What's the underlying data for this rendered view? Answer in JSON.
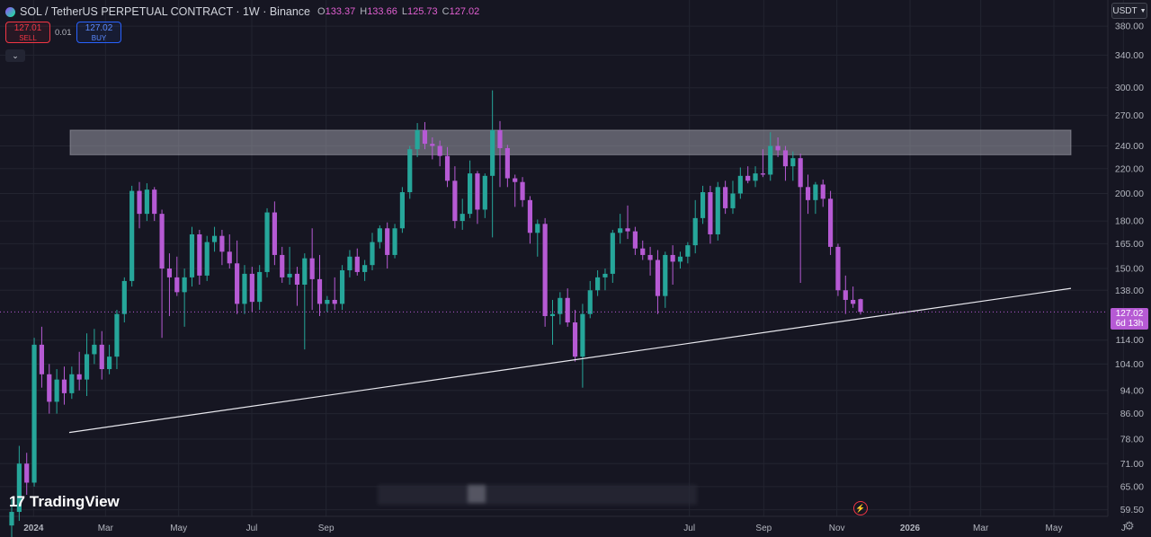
{
  "header": {
    "title": "SOL / TetherUS PERPETUAL CONTRACT · 1W · Binance",
    "open_label": "O",
    "open": "133.37",
    "high_label": "H",
    "high": "133.66",
    "low_label": "L",
    "low": "125.73",
    "close_label": "C",
    "close": "127.02"
  },
  "trade": {
    "sell_price": "127.01",
    "sell_label": "SELL",
    "spread": "0.01",
    "buy_price": "127.02",
    "buy_label": "BUY"
  },
  "currency": {
    "label": "USDT"
  },
  "brand": {
    "name": "TradingView",
    "logo": "17"
  },
  "last_price": {
    "value": "127.02",
    "countdown": "6d 13h"
  },
  "colors": {
    "up": "#26a69a",
    "down": "#b65ad4",
    "background": "#161622",
    "zone": "#9a9aa6"
  },
  "chart_data": {
    "type": "candlestick",
    "interval": "1W",
    "scale": "log",
    "ylim": [
      58,
      420
    ],
    "xlim": [
      "2023-12-04",
      "2026-06-15"
    ],
    "y_ticks": [
      "59.50",
      "65.00",
      "71.00",
      "78.00",
      "86.00",
      "94.00",
      "104.00",
      "114.00",
      "138.00",
      "150.00",
      "165.00",
      "180.00",
      "200.00",
      "220.00",
      "240.00",
      "270.00",
      "300.00",
      "340.00",
      "380.00"
    ],
    "x_ticks": [
      {
        "label": "2024",
        "date": "2024-01-01",
        "bold": true
      },
      {
        "label": "Mar",
        "date": "2024-03-01"
      },
      {
        "label": "May",
        "date": "2024-05-01"
      },
      {
        "label": "Jul",
        "date": "2024-07-01"
      },
      {
        "label": "Sep",
        "date": "2024-09-01"
      },
      {
        "label": "Jul",
        "date": "2025-07-01"
      },
      {
        "label": "Sep",
        "date": "2025-09-01"
      },
      {
        "label": "Nov",
        "date": "2025-11-01"
      },
      {
        "label": "2026",
        "date": "2026-01-01",
        "bold": true
      },
      {
        "label": "Mar",
        "date": "2026-03-01"
      },
      {
        "label": "May",
        "date": "2026-05-01"
      },
      {
        "label": "J",
        "date": "2026-06-28"
      }
    ],
    "resistance_zone": {
      "low": 232,
      "high": 255
    },
    "trendline": {
      "start": {
        "date": "2024-01-08",
        "price": 80
      },
      "end": {
        "date": "2026-05-20",
        "price": 139
      }
    },
    "candles": [
      {
        "o": 56,
        "h": 62,
        "l": 52,
        "c": 59
      },
      {
        "o": 59,
        "h": 76,
        "l": 57,
        "c": 71
      },
      {
        "o": 71,
        "h": 74,
        "l": 63,
        "c": 66
      },
      {
        "o": 66,
        "h": 115,
        "l": 65,
        "c": 112
      },
      {
        "o": 112,
        "h": 120,
        "l": 95,
        "c": 100
      },
      {
        "o": 100,
        "h": 104,
        "l": 86,
        "c": 90
      },
      {
        "o": 90,
        "h": 102,
        "l": 86,
        "c": 98
      },
      {
        "o": 98,
        "h": 103,
        "l": 89,
        "c": 93
      },
      {
        "o": 93,
        "h": 103,
        "l": 91,
        "c": 100
      },
      {
        "o": 100,
        "h": 109,
        "l": 94,
        "c": 98
      },
      {
        "o": 98,
        "h": 117,
        "l": 92,
        "c": 108
      },
      {
        "o": 108,
        "h": 119,
        "l": 104,
        "c": 112
      },
      {
        "o": 112,
        "h": 118,
        "l": 98,
        "c": 102
      },
      {
        "o": 102,
        "h": 112,
        "l": 100,
        "c": 107
      },
      {
        "o": 107,
        "h": 128,
        "l": 102,
        "c": 126
      },
      {
        "o": 126,
        "h": 145,
        "l": 122,
        "c": 143
      },
      {
        "o": 143,
        "h": 206,
        "l": 140,
        "c": 202
      },
      {
        "o": 202,
        "h": 209,
        "l": 175,
        "c": 185
      },
      {
        "o": 185,
        "h": 208,
        "l": 180,
        "c": 203
      },
      {
        "o": 203,
        "h": 205,
        "l": 180,
        "c": 185
      },
      {
        "o": 185,
        "h": 188,
        "l": 115,
        "c": 150
      },
      {
        "o": 150,
        "h": 159,
        "l": 125,
        "c": 145
      },
      {
        "o": 145,
        "h": 157,
        "l": 135,
        "c": 137
      },
      {
        "o": 137,
        "h": 150,
        "l": 120,
        "c": 145
      },
      {
        "o": 145,
        "h": 176,
        "l": 140,
        "c": 171
      },
      {
        "o": 171,
        "h": 174,
        "l": 141,
        "c": 146
      },
      {
        "o": 146,
        "h": 170,
        "l": 143,
        "c": 166
      },
      {
        "o": 166,
        "h": 176,
        "l": 160,
        "c": 170
      },
      {
        "o": 170,
        "h": 174,
        "l": 152,
        "c": 160
      },
      {
        "o": 160,
        "h": 171,
        "l": 150,
        "c": 153
      },
      {
        "o": 153,
        "h": 167,
        "l": 126,
        "c": 131
      },
      {
        "o": 131,
        "h": 152,
        "l": 126,
        "c": 147
      },
      {
        "o": 147,
        "h": 151,
        "l": 127,
        "c": 132
      },
      {
        "o": 132,
        "h": 152,
        "l": 128,
        "c": 148
      },
      {
        "o": 148,
        "h": 189,
        "l": 145,
        "c": 186
      },
      {
        "o": 186,
        "h": 194,
        "l": 152,
        "c": 158
      },
      {
        "o": 158,
        "h": 163,
        "l": 142,
        "c": 145
      },
      {
        "o": 145,
        "h": 163,
        "l": 141,
        "c": 147
      },
      {
        "o": 147,
        "h": 151,
        "l": 130,
        "c": 141
      },
      {
        "o": 141,
        "h": 159,
        "l": 110,
        "c": 156
      },
      {
        "o": 156,
        "h": 175,
        "l": 128,
        "c": 144
      },
      {
        "o": 144,
        "h": 158,
        "l": 125,
        "c": 131
      },
      {
        "o": 131,
        "h": 135,
        "l": 127,
        "c": 133
      },
      {
        "o": 133,
        "h": 145,
        "l": 128,
        "c": 131
      },
      {
        "o": 131,
        "h": 152,
        "l": 128,
        "c": 149
      },
      {
        "o": 149,
        "h": 161,
        "l": 145,
        "c": 157
      },
      {
        "o": 157,
        "h": 162,
        "l": 146,
        "c": 148
      },
      {
        "o": 148,
        "h": 155,
        "l": 143,
        "c": 152
      },
      {
        "o": 152,
        "h": 172,
        "l": 149,
        "c": 166
      },
      {
        "o": 166,
        "h": 177,
        "l": 162,
        "c": 175
      },
      {
        "o": 175,
        "h": 179,
        "l": 150,
        "c": 158
      },
      {
        "o": 158,
        "h": 178,
        "l": 156,
        "c": 175
      },
      {
        "o": 175,
        "h": 205,
        "l": 172,
        "c": 201
      },
      {
        "o": 201,
        "h": 240,
        "l": 196,
        "c": 237
      },
      {
        "o": 237,
        "h": 262,
        "l": 230,
        "c": 255
      },
      {
        "o": 255,
        "h": 263,
        "l": 237,
        "c": 242
      },
      {
        "o": 242,
        "h": 248,
        "l": 228,
        "c": 240
      },
      {
        "o": 240,
        "h": 245,
        "l": 222,
        "c": 231
      },
      {
        "o": 231,
        "h": 239,
        "l": 205,
        "c": 210
      },
      {
        "o": 210,
        "h": 222,
        "l": 175,
        "c": 180
      },
      {
        "o": 180,
        "h": 196,
        "l": 174,
        "c": 185
      },
      {
        "o": 185,
        "h": 227,
        "l": 182,
        "c": 216
      },
      {
        "o": 216,
        "h": 218,
        "l": 178,
        "c": 188
      },
      {
        "o": 188,
        "h": 216,
        "l": 182,
        "c": 214
      },
      {
        "o": 214,
        "h": 297,
        "l": 169,
        "c": 255
      },
      {
        "o": 255,
        "h": 264,
        "l": 205,
        "c": 238
      },
      {
        "o": 238,
        "h": 241,
        "l": 205,
        "c": 212
      },
      {
        "o": 212,
        "h": 215,
        "l": 190,
        "c": 209
      },
      {
        "o": 209,
        "h": 213,
        "l": 190,
        "c": 195
      },
      {
        "o": 195,
        "h": 198,
        "l": 165,
        "c": 172
      },
      {
        "o": 172,
        "h": 181,
        "l": 157,
        "c": 178
      },
      {
        "o": 178,
        "h": 182,
        "l": 120,
        "c": 125
      },
      {
        "o": 125,
        "h": 133,
        "l": 112,
        "c": 126
      },
      {
        "o": 126,
        "h": 137,
        "l": 121,
        "c": 134
      },
      {
        "o": 134,
        "h": 139,
        "l": 120,
        "c": 122
      },
      {
        "o": 122,
        "h": 128,
        "l": 105,
        "c": 107
      },
      {
        "o": 107,
        "h": 131,
        "l": 95,
        "c": 126
      },
      {
        "o": 126,
        "h": 143,
        "l": 124,
        "c": 138
      },
      {
        "o": 138,
        "h": 149,
        "l": 135,
        "c": 145
      },
      {
        "o": 145,
        "h": 150,
        "l": 138,
        "c": 147
      },
      {
        "o": 147,
        "h": 174,
        "l": 142,
        "c": 172
      },
      {
        "o": 172,
        "h": 185,
        "l": 165,
        "c": 175
      },
      {
        "o": 175,
        "h": 191,
        "l": 168,
        "c": 173
      },
      {
        "o": 173,
        "h": 176,
        "l": 158,
        "c": 162
      },
      {
        "o": 162,
        "h": 167,
        "l": 155,
        "c": 158
      },
      {
        "o": 158,
        "h": 163,
        "l": 146,
        "c": 155
      },
      {
        "o": 155,
        "h": 161,
        "l": 126,
        "c": 135
      },
      {
        "o": 135,
        "h": 160,
        "l": 129,
        "c": 158
      },
      {
        "o": 158,
        "h": 164,
        "l": 141,
        "c": 154
      },
      {
        "o": 154,
        "h": 160,
        "l": 150,
        "c": 157
      },
      {
        "o": 157,
        "h": 166,
        "l": 153,
        "c": 164
      },
      {
        "o": 164,
        "h": 195,
        "l": 159,
        "c": 182
      },
      {
        "o": 182,
        "h": 206,
        "l": 178,
        "c": 201
      },
      {
        "o": 201,
        "h": 206,
        "l": 165,
        "c": 171
      },
      {
        "o": 171,
        "h": 209,
        "l": 167,
        "c": 205
      },
      {
        "o": 205,
        "h": 210,
        "l": 185,
        "c": 189
      },
      {
        "o": 189,
        "h": 210,
        "l": 185,
        "c": 200
      },
      {
        "o": 200,
        "h": 221,
        "l": 196,
        "c": 214
      },
      {
        "o": 214,
        "h": 222,
        "l": 208,
        "c": 210
      },
      {
        "o": 210,
        "h": 222,
        "l": 205,
        "c": 216
      },
      {
        "o": 216,
        "h": 237,
        "l": 213,
        "c": 215
      },
      {
        "o": 215,
        "h": 253,
        "l": 210,
        "c": 240
      },
      {
        "o": 240,
        "h": 248,
        "l": 230,
        "c": 236
      },
      {
        "o": 236,
        "h": 240,
        "l": 210,
        "c": 222
      },
      {
        "o": 222,
        "h": 235,
        "l": 210,
        "c": 229
      },
      {
        "o": 229,
        "h": 233,
        "l": 142,
        "c": 205
      },
      {
        "o": 205,
        "h": 215,
        "l": 185,
        "c": 195
      },
      {
        "o": 195,
        "h": 209,
        "l": 185,
        "c": 207
      },
      {
        "o": 207,
        "h": 211,
        "l": 190,
        "c": 196
      },
      {
        "o": 196,
        "h": 202,
        "l": 158,
        "c": 163
      },
      {
        "o": 163,
        "h": 165,
        "l": 135,
        "c": 138
      },
      {
        "o": 138,
        "h": 146,
        "l": 126,
        "c": 133
      },
      {
        "o": 133,
        "h": 140,
        "l": 129,
        "c": 131
      },
      {
        "o": 133.37,
        "h": 133.66,
        "l": 125.73,
        "c": 127.02
      }
    ]
  }
}
